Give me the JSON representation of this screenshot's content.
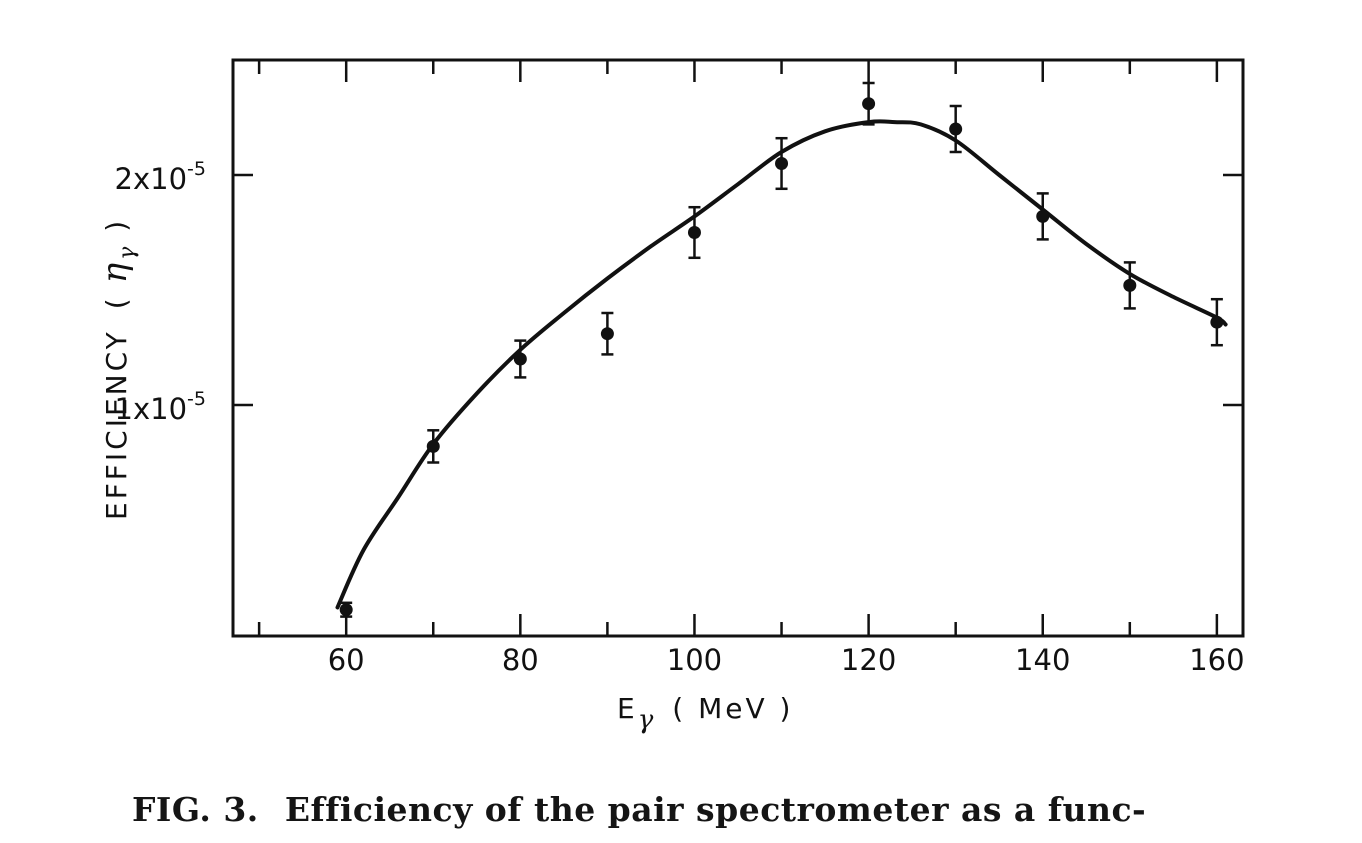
{
  "chart_data": {
    "type": "scatter",
    "x_ticks": [
      60,
      80,
      100,
      120,
      140,
      160
    ],
    "x_tick_labels": [
      "60",
      "80",
      "100",
      "120",
      "140",
      "160"
    ],
    "xlim": [
      47,
      163
    ],
    "ylim": [
      0,
      2.5
    ],
    "y_ticks": [
      1,
      2
    ],
    "y_scale_factor": "x10^-5",
    "xlabel": {
      "base": "E",
      "sub": "γ",
      "units": "( MeV )"
    },
    "ylabel": {
      "text": "EFFICIENCY",
      "symbol": "η",
      "sub": "γ"
    },
    "y_tick_labels": [
      {
        "value": 1,
        "prefix": "1x10",
        "exp": "-5"
      },
      {
        "value": 2,
        "prefix": "2x10",
        "exp": "-5"
      }
    ],
    "series": [
      {
        "kind": "points_with_error_bars",
        "x": [
          60,
          70,
          80,
          90,
          100,
          110,
          120,
          130,
          140,
          150,
          160
        ],
        "y": [
          0.11,
          0.82,
          1.2,
          1.31,
          1.75,
          2.05,
          2.31,
          2.2,
          1.82,
          1.52,
          1.36
        ],
        "y_err": [
          0.03,
          0.07,
          0.08,
          0.09,
          0.11,
          0.11,
          0.09,
          0.1,
          0.1,
          0.1,
          0.1
        ]
      },
      {
        "kind": "fit_curve",
        "x": [
          59,
          62,
          66,
          70,
          75,
          80,
          85,
          90,
          95,
          100,
          105,
          110,
          115,
          120,
          123,
          126,
          130,
          135,
          140,
          145,
          150,
          155,
          160,
          161
        ],
        "y": [
          0.12,
          0.37,
          0.6,
          0.83,
          1.05,
          1.24,
          1.4,
          1.55,
          1.69,
          1.82,
          1.96,
          2.1,
          2.19,
          2.23,
          2.23,
          2.22,
          2.15,
          2.0,
          1.85,
          1.7,
          1.57,
          1.47,
          1.38,
          1.35
        ]
      }
    ]
  },
  "caption": {
    "label": "FIG. 3.",
    "text": "Efficiency of the pair spectrometer as a func-"
  }
}
